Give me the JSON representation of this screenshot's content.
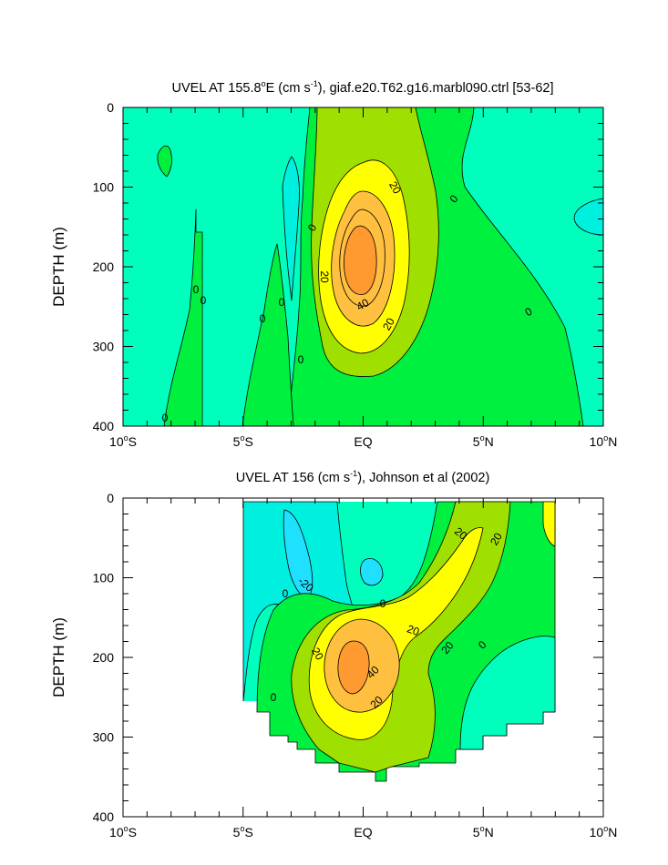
{
  "chart_data": [
    {
      "type": "contour",
      "title_main": "UVEL AT 155.8",
      "title_deg": "o",
      "title_mid": "E (cm s",
      "title_exp": "-1",
      "title_tail": "), giaf.e20.T62.g16.marbl090.ctrl [53-62]",
      "ylabel": "DEPTH (m)",
      "xlabel": "",
      "y_ticks": [
        "0",
        "100",
        "200",
        "300",
        "400"
      ],
      "y_values": [
        0,
        100,
        200,
        300,
        400
      ],
      "ylim": [
        400,
        0
      ],
      "x_ticks": [
        {
          "num": "10",
          "deg": "o",
          "hem": "S"
        },
        {
          "num": "5",
          "deg": "o",
          "hem": "S"
        },
        {
          "num": "EQ",
          "deg": "",
          "hem": ""
        },
        {
          "num": "5",
          "deg": "o",
          "hem": "N"
        },
        {
          "num": "10",
          "deg": "o",
          "hem": "N"
        }
      ],
      "x_values": [
        -10,
        -5,
        0,
        5,
        10
      ],
      "xlim": [
        -10,
        10
      ],
      "contour_interval": 10,
      "max_value_approx": 55,
      "max_location": {
        "lat": -0.5,
        "depth": 190
      },
      "contour_labels": [
        "20",
        "0",
        "0",
        "20",
        "40",
        "20",
        "0",
        "0",
        "0",
        "0",
        "0",
        "0",
        "0"
      ],
      "colors": {
        "lt_m10": "#00f0e0",
        "lt_0": "#00ffbc",
        "lt_10": "#00f040",
        "lt_20": "#a0e000",
        "lt_30": "#ffff00",
        "lt_40": "#ffc040",
        "lt_50": "#ff9a30"
      }
    },
    {
      "type": "contour",
      "title_main": "UVEL AT 156 (cm s",
      "title_exp": "-1",
      "title_tail": "), Johnson et al (2002)",
      "ylabel": "DEPTH (m)",
      "xlabel": "",
      "y_ticks": [
        "0",
        "100",
        "200",
        "300",
        "400"
      ],
      "y_values": [
        0,
        100,
        200,
        300,
        400
      ],
      "ylim": [
        400,
        0
      ],
      "x_ticks": [
        {
          "num": "10",
          "deg": "o",
          "hem": "S"
        },
        {
          "num": "5",
          "deg": "o",
          "hem": "S"
        },
        {
          "num": "EQ",
          "deg": "",
          "hem": ""
        },
        {
          "num": "5",
          "deg": "o",
          "hem": "N"
        },
        {
          "num": "10",
          "deg": "o",
          "hem": "N"
        }
      ],
      "x_values": [
        -10,
        -5,
        0,
        5,
        10
      ],
      "xlim": [
        -10,
        10
      ],
      "data_extent_lat": [
        -5,
        8
      ],
      "contour_interval": 10,
      "max_value_approx": 50,
      "max_location": {
        "lat": -0.5,
        "depth": 200
      },
      "contour_labels": [
        "20",
        "20",
        "-20",
        "0",
        "0",
        "20",
        "20",
        "20",
        "40",
        "20",
        "0",
        "0"
      ]
    }
  ]
}
